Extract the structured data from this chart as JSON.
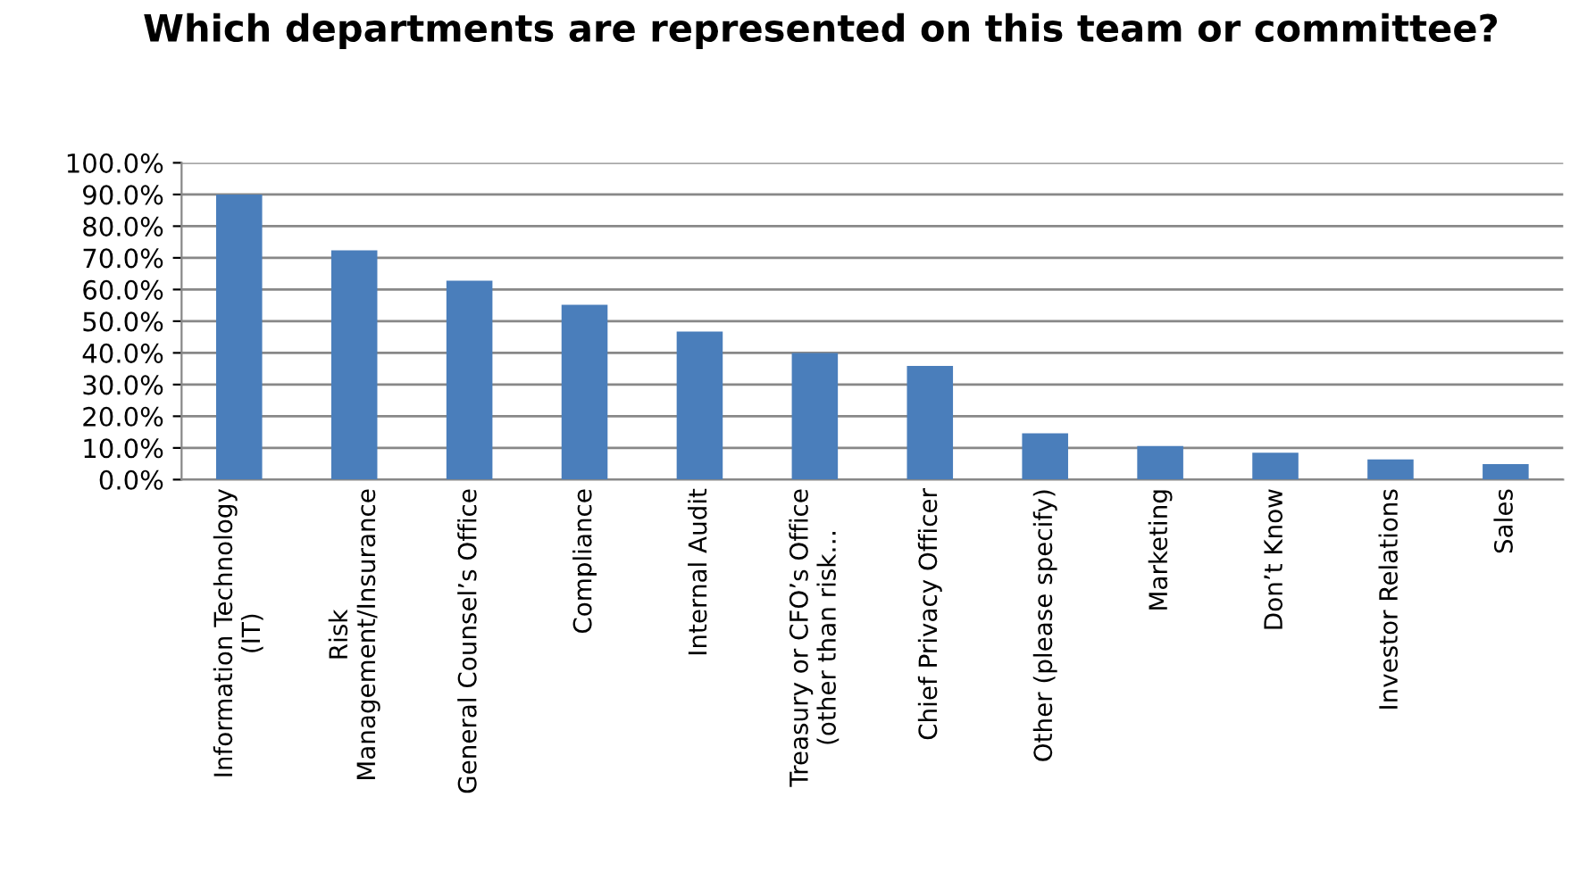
{
  "chart_data": {
    "type": "bar",
    "title": "Which departments are represented on this team or committee?",
    "categories": [
      "Information Technology\n(IT)",
      "Risk\nManagement/Insurance",
      "General Counsel’s Office",
      "Compliance",
      "Internal Audit",
      "Treasury or CFO’s Office\n(other than risk…",
      "Chief Privacy Officer",
      "Other (please specify)",
      "Marketing",
      "Don’t Know",
      "Investor Relations",
      "Sales"
    ],
    "values": [
      90.0,
      72.4,
      62.8,
      55.2,
      46.7,
      40.0,
      35.9,
      14.6,
      10.6,
      8.5,
      6.4,
      4.9
    ],
    "color": "#4a7ebb",
    "ylim": [
      0,
      100
    ],
    "yticks": [
      {
        "value": 0,
        "label": "0.0%"
      },
      {
        "value": 10,
        "label": "10.0%"
      },
      {
        "value": 20,
        "label": "20.0%"
      },
      {
        "value": 30,
        "label": "30.0%"
      },
      {
        "value": 40,
        "label": "40.0%"
      },
      {
        "value": 50,
        "label": "50.0%"
      },
      {
        "value": 60,
        "label": "60.0%"
      },
      {
        "value": 70,
        "label": "70.0%"
      },
      {
        "value": 80,
        "label": "80.0%"
      },
      {
        "value": 90,
        "label": "90.0%"
      },
      {
        "value": 100,
        "label": "100.0%"
      }
    ],
    "grid": "y",
    "legend": false
  }
}
